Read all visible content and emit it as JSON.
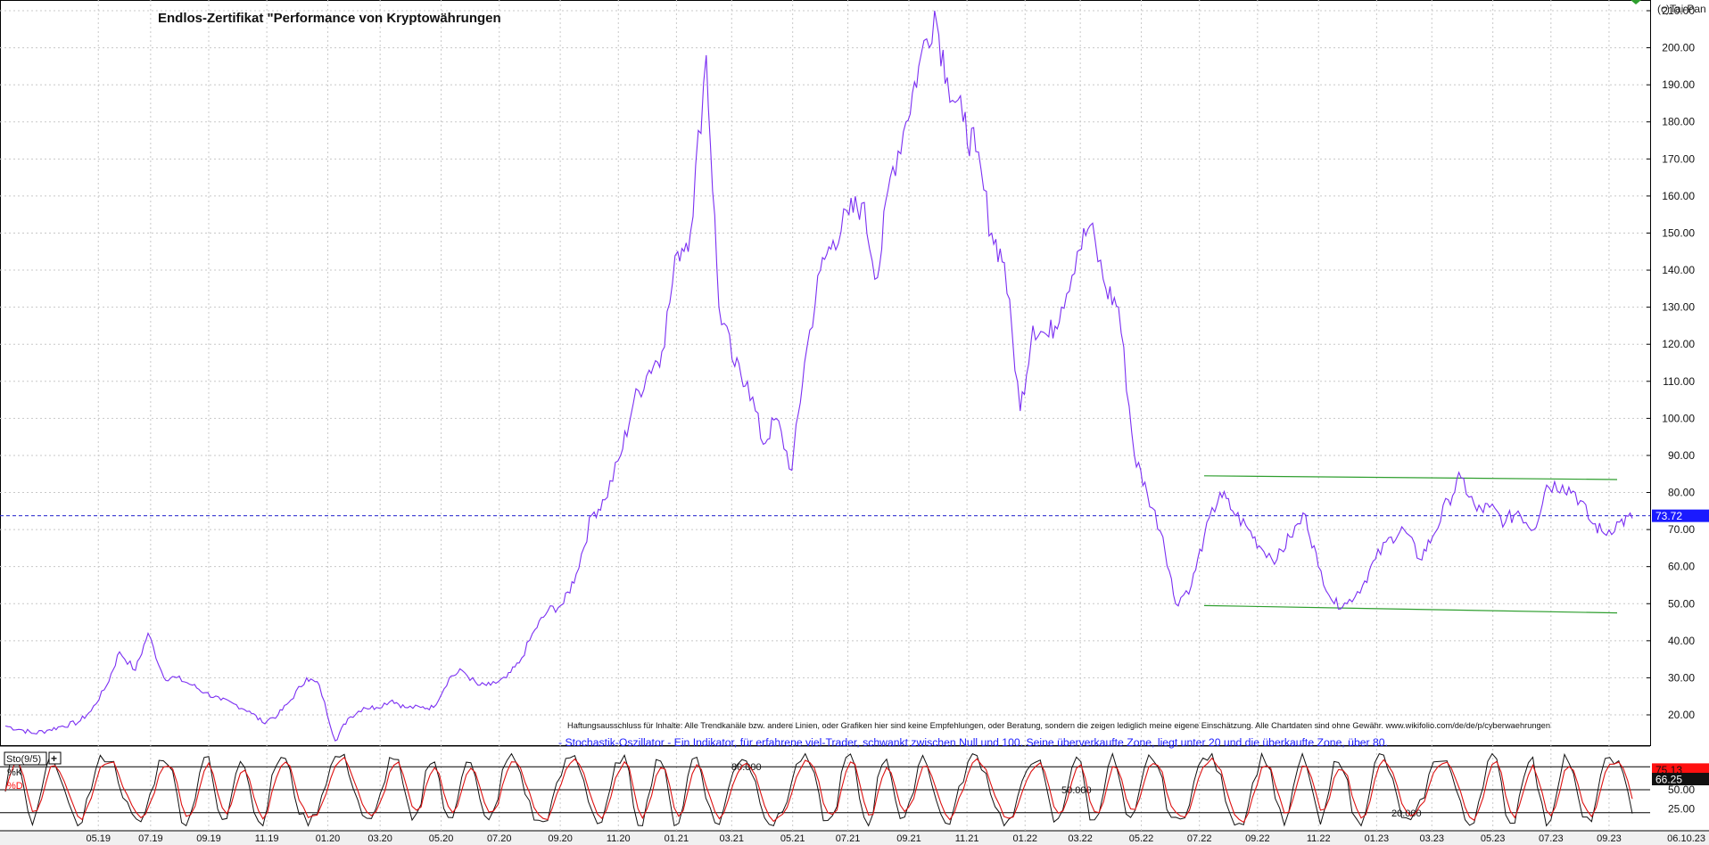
{
  "title": "Endlos-Zertifikat \"Performance von Kryptowährungen",
  "watermark": "(c)Tai-Pan",
  "disclaimer": "Haftungsausschluss für Inhalte: Alle Trendkanäle bzw. andere Linien, oder Grafiken hier sind keine Empfehlungen, oder Beratung, sondern die zeigen lediglich meine eigene Einschätzung. Alle Chartdaten sind ohne Gewähr. www.wikifolio.com/de/de/p/cyberwaehrungen",
  "indicator_note": "- Stochastik-Oszillator - Ein Indikator, für erfahrene viel-Trader, schwankt zwischen Null und 100. Seine überverkaufte Zone, liegt unter 20 und die überkaufte Zone, über 80.",
  "colors": {
    "price": "#7b2ff2",
    "channel": "#2e9e2e",
    "current_line": "#2222cc",
    "k_line": "#111111",
    "d_line": "#dd1111",
    "grid": "#c8c8c8",
    "label_blue": "#1a1aff",
    "label_red": "#ff1010"
  },
  "chart_data": [
    {
      "type": "line",
      "name": "price",
      "x_labels": [
        "05.19",
        "07.19",
        "09.19",
        "11.19",
        "01.20",
        "03.20",
        "05.20",
        "07.20",
        "09.20",
        "11.20",
        "01.21",
        "03.21",
        "05.21",
        "07.21",
        "09.21",
        "11.21",
        "01.22",
        "03.22",
        "05.22",
        "07.22",
        "09.22",
        "11.22",
        "01.23",
        "03.23",
        "05.23",
        "07.23",
        "09.23"
      ],
      "x_end_label": "06.10.23",
      "y_ticks": [
        "20.00",
        "30.00",
        "40.00",
        "50.00",
        "60.00",
        "70.00",
        "80.00",
        "90.00",
        "100.00",
        "110.00",
        "120.00",
        "130.00",
        "140.00",
        "150.00",
        "160.00",
        "170.00",
        "180.00",
        "190.00",
        "200.00",
        "210.00"
      ],
      "ylim": [
        14,
        212
      ],
      "current_value": 73.72,
      "current_label": "73.72",
      "series_points": [
        [
          0,
          17
        ],
        [
          5,
          16
        ],
        [
          9,
          15
        ],
        [
          14,
          16
        ],
        [
          18,
          17
        ],
        [
          23,
          18
        ],
        [
          27,
          21
        ],
        [
          32,
          28
        ],
        [
          36,
          37
        ],
        [
          41,
          32
        ],
        [
          45,
          42
        ],
        [
          50,
          30
        ],
        [
          54,
          30
        ],
        [
          59,
          28
        ],
        [
          63,
          26
        ],
        [
          68,
          24
        ],
        [
          72,
          23
        ],
        [
          77,
          21
        ],
        [
          81,
          18
        ],
        [
          86,
          20
        ],
        [
          90,
          24
        ],
        [
          95,
          30
        ],
        [
          99,
          28
        ],
        [
          104,
          13
        ],
        [
          108,
          19
        ],
        [
          113,
          22
        ],
        [
          117,
          22
        ],
        [
          122,
          24
        ],
        [
          126,
          22
        ],
        [
          131,
          22
        ],
        [
          135,
          22
        ],
        [
          140,
          30
        ],
        [
          144,
          32
        ],
        [
          149,
          28
        ],
        [
          153,
          28
        ],
        [
          158,
          30
        ],
        [
          162,
          34
        ],
        [
          167,
          43
        ],
        [
          171,
          48
        ],
        [
          176,
          50
        ],
        [
          180,
          58
        ],
        [
          185,
          74
        ],
        [
          189,
          78
        ],
        [
          194,
          90
        ],
        [
          198,
          104
        ],
        [
          203,
          113
        ],
        [
          207,
          118
        ],
        [
          212,
          145
        ],
        [
          216,
          150
        ],
        [
          221,
          198
        ],
        [
          225,
          130
        ],
        [
          230,
          114
        ],
        [
          234,
          110
        ],
        [
          239,
          93
        ],
        [
          243,
          100
        ],
        [
          248,
          86
        ],
        [
          252,
          115
        ],
        [
          257,
          140
        ],
        [
          261,
          148
        ],
        [
          266,
          155
        ],
        [
          270,
          158
        ],
        [
          275,
          138
        ],
        [
          279,
          165
        ],
        [
          284,
          180
        ],
        [
          288,
          195
        ],
        [
          293,
          210
        ],
        [
          297,
          192
        ],
        [
          302,
          180
        ],
        [
          306,
          172
        ],
        [
          311,
          150
        ],
        [
          315,
          142
        ],
        [
          320,
          102
        ],
        [
          324,
          125
        ],
        [
          329,
          122
        ],
        [
          333,
          130
        ],
        [
          338,
          145
        ],
        [
          342,
          152
        ],
        [
          347,
          135
        ],
        [
          351,
          130
        ],
        [
          356,
          90
        ],
        [
          360,
          80
        ],
        [
          365,
          68
        ],
        [
          369,
          50
        ],
        [
          374,
          55
        ],
        [
          378,
          68
        ],
        [
          383,
          80
        ],
        [
          387,
          75
        ],
        [
          392,
          70
        ],
        [
          396,
          65
        ],
        [
          401,
          62
        ],
        [
          405,
          68
        ],
        [
          410,
          74
        ],
        [
          414,
          60
        ],
        [
          419,
          50
        ],
        [
          423,
          50
        ],
        [
          428,
          55
        ],
        [
          432,
          62
        ],
        [
          437,
          68
        ],
        [
          441,
          70
        ],
        [
          446,
          62
        ],
        [
          450,
          68
        ],
        [
          455,
          78
        ],
        [
          459,
          84
        ],
        [
          464,
          75
        ],
        [
          468,
          76
        ],
        [
          473,
          72
        ],
        [
          477,
          75
        ],
        [
          482,
          70
        ],
        [
          486,
          82
        ],
        [
          491,
          82
        ],
        [
          495,
          80
        ],
        [
          500,
          72
        ],
        [
          504,
          69
        ],
        [
          509,
          72
        ],
        [
          513,
          73
        ]
      ],
      "x_index_max": 513,
      "x_label_index": [
        32,
        50,
        70,
        90,
        111,
        129,
        150,
        170,
        191,
        211,
        231,
        250,
        271,
        290,
        311,
        331,
        351,
        370,
        391,
        411,
        431,
        452,
        472,
        491,
        512,
        532,
        552
      ],
      "channel": [
        {
          "from": [
            378,
            84.5
          ],
          "to": [
            513,
            83.5
          ]
        },
        {
          "from": [
            378,
            49.5
          ],
          "to": [
            513,
            47.5
          ]
        }
      ]
    },
    {
      "type": "line",
      "name": "Sto(9/5)",
      "legend": [
        "%K",
        "%D"
      ],
      "levels": [
        {
          "value": 80,
          "label": "80.000"
        },
        {
          "value": 50,
          "label": "50.000"
        },
        {
          "value": 20,
          "label": "20.000"
        }
      ],
      "y_ticks": [
        "25.00",
        "50.00"
      ],
      "ylim": [
        0,
        100
      ],
      "current_k": "75.13",
      "current_d": "66.25"
    }
  ]
}
